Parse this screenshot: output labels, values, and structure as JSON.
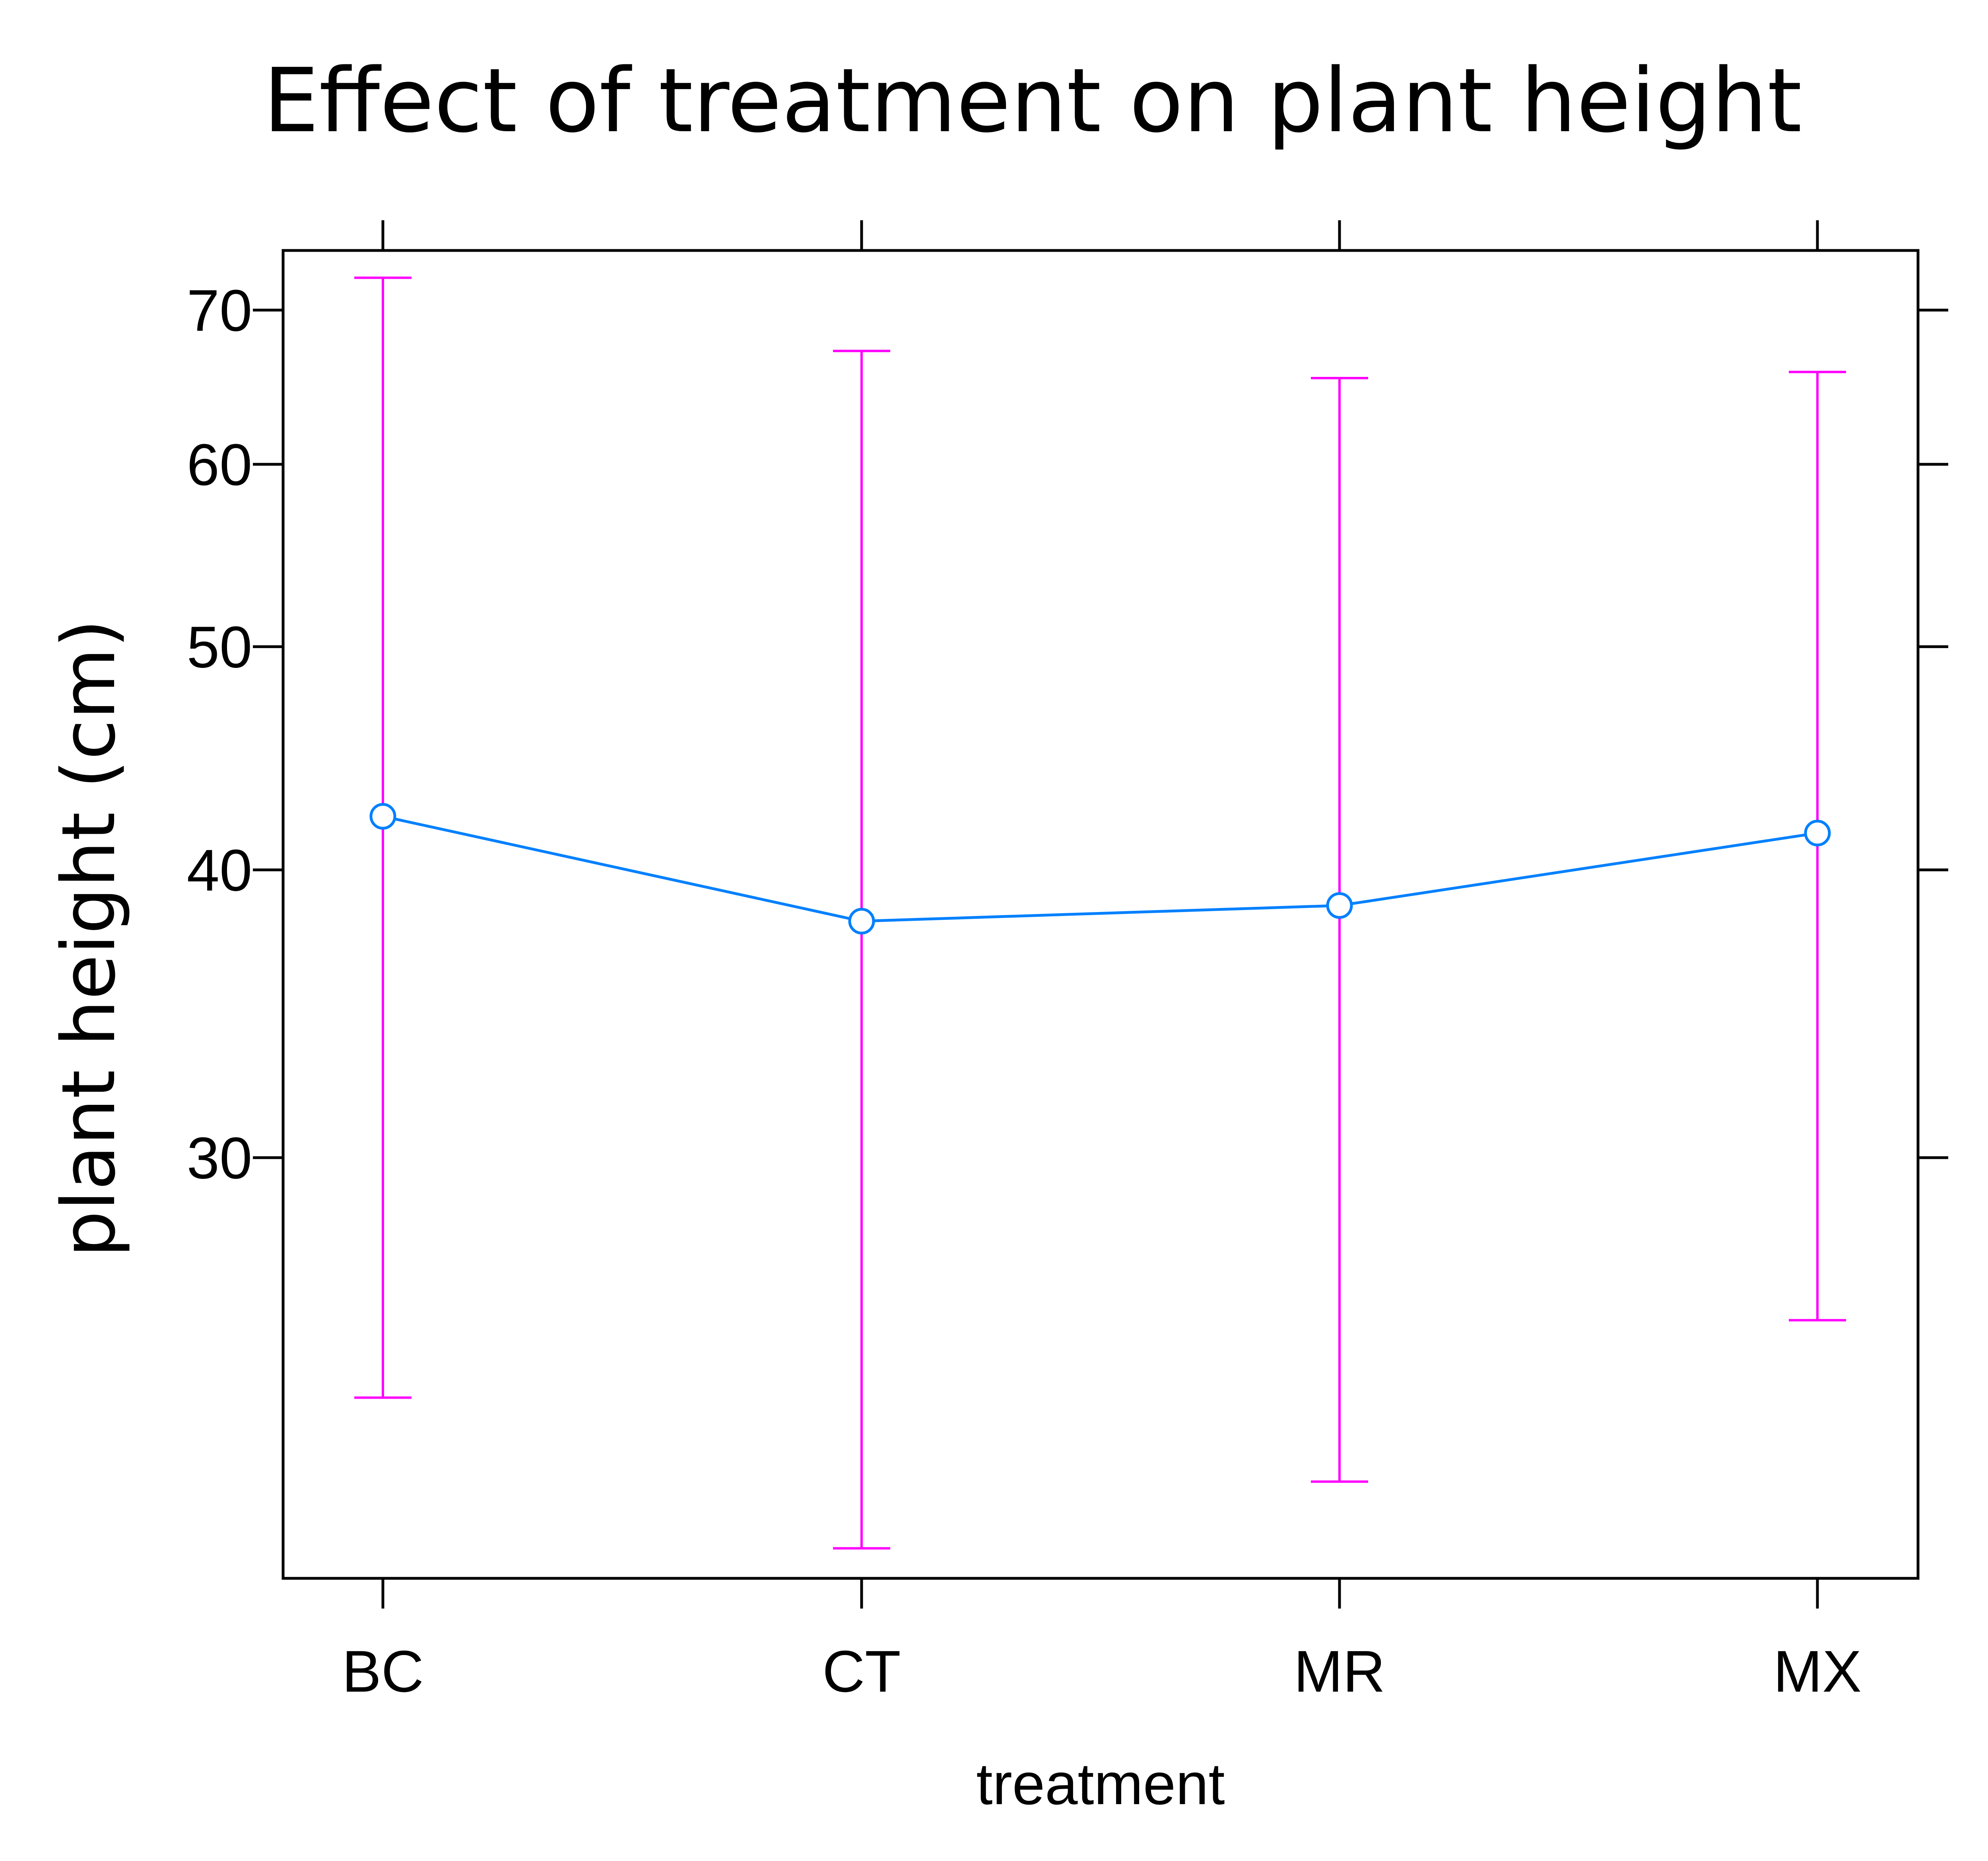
{
  "chart_data": {
    "type": "line",
    "title": "Effect of treatment on plant height",
    "xlabel": "treatment",
    "ylabel": "plant height (cm)",
    "y_scale": "log",
    "categories": [
      "BC",
      "CT",
      "MR",
      "MX"
    ],
    "yticks": [
      30,
      40,
      50,
      60,
      70
    ],
    "ylim": [
      19.7,
      74.3
    ],
    "grid": false,
    "series": [
      {
        "values": [
          42.2,
          38.0,
          38.6,
          41.5
        ],
        "lower": [
          23.6,
          20.3,
          21.7,
          25.5
        ],
        "upper": [
          72.3,
          67.2,
          65.4,
          65.8
        ]
      }
    ],
    "colors": {
      "line": "#0080ff",
      "error_bars": "#ff00ff",
      "axis": "#000000"
    }
  }
}
